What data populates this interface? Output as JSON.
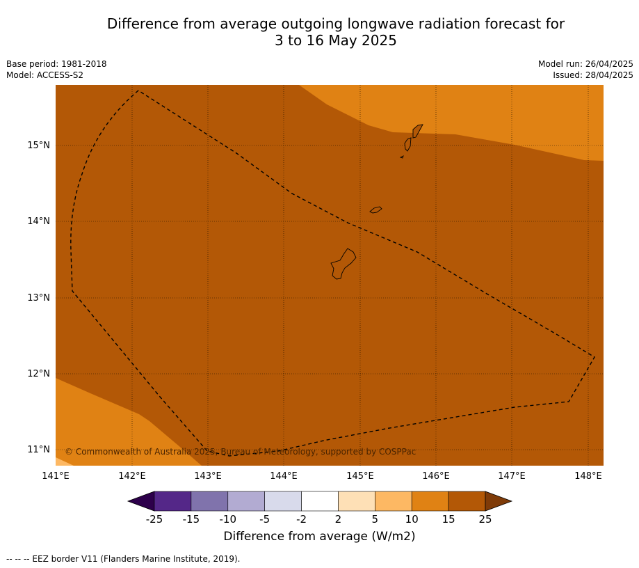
{
  "title": {
    "line1": "Difference from average outgoing longwave radiation forecast for",
    "line2": "3 to 16 May 2025"
  },
  "meta": {
    "base_period": "Base period: 1981-2018",
    "model": "Model: ACCESS-S2",
    "model_run": "Model run: 26/04/2025",
    "issued": "Issued: 28/04/2025"
  },
  "map": {
    "lat_ticks": [
      "15°N",
      "14°N",
      "13°N",
      "12°N",
      "11°N"
    ],
    "lon_ticks": [
      "141°E",
      "142°E",
      "143°E",
      "144°E",
      "145°E",
      "146°E",
      "147°E",
      "148°E"
    ],
    "copyright": "© Commonwealth of Australia 2025, Bureau of Meteorology, supported by COSPPac",
    "colors": {
      "band_10_15": "#e08214",
      "band_15_25": "#b35806",
      "band_5_10": "#fdb863"
    }
  },
  "colorbar": {
    "tick_labels": [
      "-25",
      "-15",
      "-10",
      "-5",
      "-2",
      "2",
      "5",
      "10",
      "15",
      "25"
    ],
    "colors": [
      "#2d004b",
      "#542788",
      "#8073ac",
      "#b2abd2",
      "#d8daeb",
      "#ffffff",
      "#fee0b6",
      "#fdb863",
      "#e08214",
      "#b35806",
      "#7f3b08"
    ],
    "label": "Difference from average (W/m2)"
  },
  "footer": "--  --  -- EEZ border V11 (Flanders Marine Institute, 2019)."
}
